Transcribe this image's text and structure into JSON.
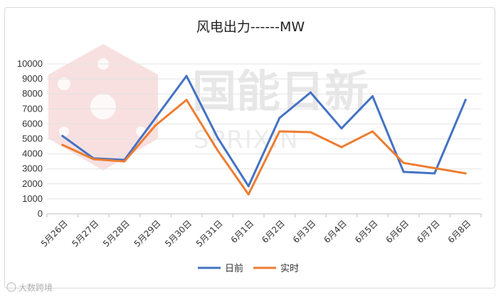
{
  "chart_data": {
    "type": "line",
    "title": "风电出力------MW",
    "categories": [
      "5月26日",
      "5月27日",
      "5月28日",
      "5月29日",
      "5月30日",
      "5月31日",
      "6月1日",
      "6月2日",
      "6月3日",
      "6月4日",
      "6月5日",
      "6月6日",
      "6月7日",
      "6月8日"
    ],
    "ylim": [
      0,
      10000
    ],
    "yticks": [
      0,
      1000,
      2000,
      3000,
      4000,
      5000,
      6000,
      7000,
      8000,
      9000,
      10000
    ],
    "grid": true,
    "legend_position": "bottom",
    "series": [
      {
        "name": "日前",
        "color": "#4472c4",
        "values": [
          5200,
          3700,
          3600,
          6400,
          9200,
          5100,
          1850,
          6400,
          8100,
          5700,
          7850,
          2800,
          2700,
          7600
        ]
      },
      {
        "name": "实时",
        "color": "#ed7d31",
        "values": [
          4600,
          3650,
          3500,
          5900,
          7600,
          4250,
          1300,
          5500,
          5450,
          4450,
          5500,
          3400,
          3050,
          2700
        ]
      }
    ]
  },
  "watermark": {
    "brand": "国能日新",
    "sub": "SPRIXIN",
    "corner": "大数跨境"
  }
}
